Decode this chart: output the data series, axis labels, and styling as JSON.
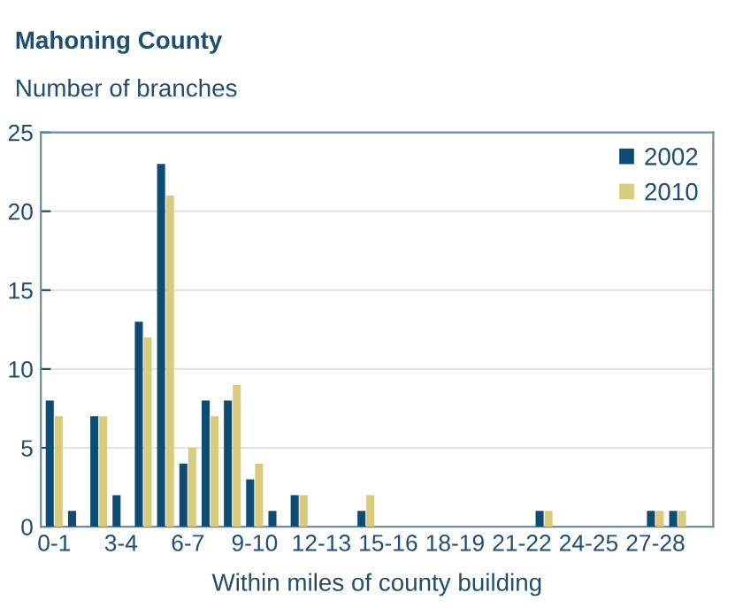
{
  "chart_data": {
    "type": "bar",
    "title": "Mahoning County",
    "ylabel": "Number of branches",
    "xlabel": "Within miles of county building",
    "categories": [
      "0-1",
      null,
      null,
      "3-4",
      null,
      null,
      "6-7",
      null,
      null,
      "9-10",
      null,
      null,
      "12-13",
      null,
      null,
      "15-16",
      null,
      null,
      "18-19",
      null,
      null,
      "21-22",
      null,
      null,
      "24-25",
      null,
      null,
      "27-28",
      null,
      null
    ],
    "series": [
      {
        "name": "2002",
        "color": "#0e4c74",
        "values": [
          8,
          1,
          7,
          2,
          13,
          23,
          4,
          8,
          8,
          3,
          1,
          2,
          0,
          0,
          1,
          0,
          0,
          0,
          0,
          0,
          0,
          0,
          1,
          0,
          0,
          0,
          0,
          1,
          1,
          0
        ]
      },
      {
        "name": "2010",
        "color": "#d8cb7e",
        "values": [
          7,
          0,
          7,
          0,
          12,
          21,
          5,
          7,
          9,
          4,
          0,
          2,
          0,
          0,
          2,
          0,
          0,
          0,
          0,
          0,
          0,
          0,
          1,
          0,
          0,
          0,
          0,
          1,
          1,
          0
        ]
      }
    ],
    "ylim": [
      0,
      25
    ],
    "yticks": [
      0,
      5,
      10,
      15,
      20,
      25
    ],
    "grid": "y",
    "legend": "top right"
  }
}
